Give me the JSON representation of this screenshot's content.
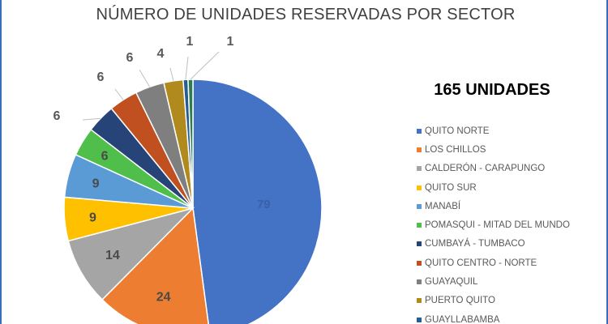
{
  "chart_data": {
    "type": "pie",
    "title": "NÚMERO DE UNIDADES RESERVADAS POR SECTOR",
    "total_label": "165 UNIDADES",
    "legend_position": "right",
    "slices": [
      {
        "label": "QUITO NORTE",
        "value": 79,
        "display": "79",
        "color": "#4472c4"
      },
      {
        "label": "LOS CHILLOS",
        "value": 24,
        "display": "24",
        "color": "#ed7d31"
      },
      {
        "label": "CALDERÓN - CARAPUNGO",
        "value": 14,
        "display": "14",
        "color": "#a5a5a5"
      },
      {
        "label": "QUITO SUR",
        "value": 9,
        "display": "9",
        "color": "#ffc000"
      },
      {
        "label": "MANABÍ",
        "value": 9,
        "display": "9",
        "color": "#5b9bd5"
      },
      {
        "label": "POMASQUI - MITAD DEL MUNDO",
        "value": 6,
        "display": "6",
        "color": "#4fbe4b"
      },
      {
        "label": "CUMBAYÁ - TUMBACO",
        "value": 6,
        "display": "6",
        "color": "#264478"
      },
      {
        "label": "QUITO CENTRO - NORTE",
        "value": 6,
        "display": "6",
        "color": "#c0501f"
      },
      {
        "label": "GUAYAQUIL",
        "value": 6,
        "display": "6",
        "color": "#7f7f7f"
      },
      {
        "label": "PUERTO QUITO",
        "value": 4,
        "display": "4",
        "color": "#b08a1c"
      },
      {
        "label": "GUAYLLABAMBA",
        "value": 1,
        "display": "1",
        "color": "#255e91"
      },
      {
        "label": "",
        "value": 1,
        "display": "1",
        "color": "#2e7d4f"
      }
    ]
  }
}
